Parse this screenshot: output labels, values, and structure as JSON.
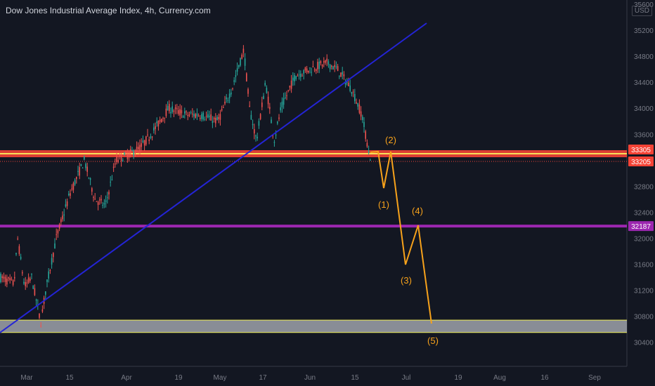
{
  "chart_data": {
    "type": "candlestick",
    "title": "Dow Jones Industrial Average Index, 4h, Currency.com",
    "currency": "USD",
    "ylim": [
      30150,
      35650
    ],
    "y_ticks": [
      35600,
      35200,
      34800,
      34400,
      34000,
      33600,
      33200,
      32800,
      32400,
      32000,
      31600,
      31200,
      30800,
      30400
    ],
    "x_ticks": [
      "Mar",
      "15",
      "Apr",
      "19",
      "May",
      "17",
      "Jun",
      "15",
      "Jul",
      "19",
      "Aug",
      "16",
      "Sep"
    ],
    "colors": {
      "background": "#131722",
      "up": "#26a69a",
      "down": "#ef5350",
      "trendline": "#2424d6",
      "wave": "#f7a21b",
      "purple": "#9c27b0",
      "support_zone": "#b2b5be",
      "support_border": "#f0f05a"
    },
    "horizontal_levels": [
      {
        "value": 33305,
        "label": "33305",
        "color": "#f44336",
        "fill": "#f44336"
      },
      {
        "value": 33205,
        "label": "33205",
        "color": "#f44336",
        "fill": "#f44336"
      },
      {
        "value": 32187,
        "label": "32187",
        "color": "#9c27b0",
        "fill": "#9c27b0"
      }
    ],
    "support_zone": {
      "from": 30550,
      "to": 30740
    },
    "wave_labels": [
      "(1)",
      "(2)",
      "(3)",
      "(4)",
      "(5)"
    ]
  }
}
